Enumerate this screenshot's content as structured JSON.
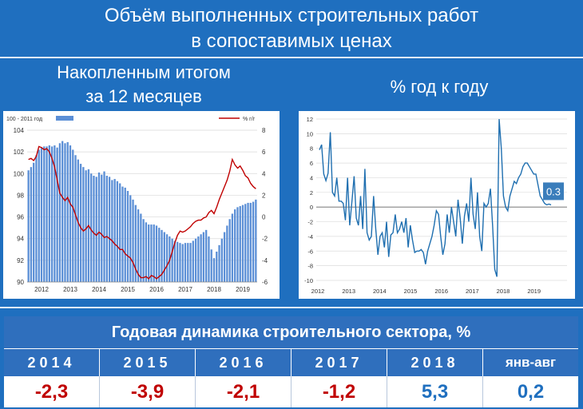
{
  "title_line1": "Объём выполненных строительных работ",
  "title_line2": "в сопоставимых ценах",
  "left_subtitle_line1": "Накопленным итогом",
  "left_subtitle_line2": "за 12 месяцев",
  "right_subtitle": "% год к году",
  "table": {
    "title": "Годовая динамика строительного сектора, %",
    "headers": [
      "2014",
      "2015",
      "2016",
      "2017",
      "2018",
      "янв-авг"
    ],
    "values": [
      "-2,3",
      "-3,9",
      "-2,1",
      "-1,2",
      "5,3",
      "0,2"
    ],
    "value_colors": [
      "#c00000",
      "#c00000",
      "#c00000",
      "#c00000",
      "#1f6fbf",
      "#1f6fbf"
    ]
  },
  "chart_data": [
    {
      "type": "bar",
      "legend_left": "100 - 2011 год",
      "legend_right": "% г/г",
      "y_left_ticks": [
        "90",
        "92",
        "94",
        "96",
        "98",
        "100",
        "102",
        "104"
      ],
      "y_left_lim": [
        90,
        104
      ],
      "y_right_ticks": [
        "-6",
        "-4",
        "-2",
        "0",
        "2",
        "4",
        "6",
        "8"
      ],
      "y_right_lim": [
        -6,
        8
      ],
      "x_ticks": [
        "2012",
        "2013",
        "2014",
        "2015",
        "2016",
        "2017",
        "2018",
        "2019"
      ],
      "series": [
        {
          "name": "100 - 2011 год",
          "type": "bar",
          "color": "#5b8fd6",
          "values": [
            100.3,
            100.6,
            101.0,
            101.7,
            102.2,
            102.4,
            102.5,
            102.5,
            102.6,
            102.5,
            102.6,
            102.4,
            102.8,
            103.0,
            102.8,
            102.9,
            102.6,
            102.2,
            101.7,
            101.3,
            100.9,
            100.6,
            100.3,
            100.4,
            100.0,
            99.8,
            99.7,
            100.1,
            99.9,
            100.2,
            99.8,
            99.7,
            99.4,
            99.5,
            99.3,
            99.1,
            98.8,
            98.7,
            98.4,
            98.0,
            97.6,
            97.1,
            96.7,
            96.3,
            95.8,
            95.5,
            95.3,
            95.3,
            95.3,
            95.2,
            95.0,
            94.8,
            94.6,
            94.4,
            94.2,
            94.0,
            93.8,
            93.7,
            93.6,
            93.5,
            93.6,
            93.6,
            93.6,
            93.8,
            94.0,
            94.2,
            94.4,
            94.6,
            94.8,
            94.2,
            93.0,
            92.2,
            92.8,
            93.4,
            94.0,
            94.6,
            95.2,
            95.8,
            96.3,
            96.7,
            96.9,
            97.0,
            97.1,
            97.2,
            97.3,
            97.3,
            97.4,
            97.6
          ]
        },
        {
          "name": "% г/г",
          "type": "line",
          "color": "#c00000",
          "values": [
            5.3,
            5.4,
            5.2,
            5.6,
            6.5,
            6.4,
            6.2,
            6.3,
            6.0,
            5.4,
            4.6,
            3.4,
            2.2,
            1.8,
            1.5,
            1.8,
            1.2,
            0.9,
            0.2,
            -0.5,
            -1.0,
            -1.3,
            -1.1,
            -0.8,
            -1.2,
            -1.5,
            -1.7,
            -1.4,
            -1.6,
            -1.9,
            -1.8,
            -2.0,
            -2.2,
            -2.5,
            -2.7,
            -3.0,
            -3.0,
            -3.4,
            -3.6,
            -3.8,
            -4.2,
            -4.8,
            -5.3,
            -5.6,
            -5.6,
            -5.5,
            -5.7,
            -5.4,
            -5.5,
            -5.7,
            -5.5,
            -5.3,
            -4.9,
            -4.5,
            -4.0,
            -3.2,
            -2.4,
            -1.7,
            -1.3,
            -1.4,
            -1.3,
            -1.1,
            -0.9,
            -0.6,
            -0.4,
            -0.3,
            -0.3,
            -0.1,
            0.0,
            0.4,
            0.6,
            0.3,
            0.9,
            1.6,
            2.2,
            2.8,
            3.4,
            4.2,
            5.3,
            4.8,
            4.5,
            4.7,
            4.3,
            3.8,
            3.6,
            3.1,
            2.8,
            2.6
          ]
        }
      ]
    },
    {
      "type": "line",
      "y_ticks": [
        "-10",
        "-8",
        "-6",
        "-4",
        "-2",
        "0",
        "2",
        "4",
        "6",
        "8",
        "10",
        "12"
      ],
      "ylim": [
        -10,
        12
      ],
      "x_ticks": [
        "2012",
        "2013",
        "2014",
        "2015",
        "2016",
        "2017",
        "2018",
        "2019"
      ],
      "last_value_label": "0.3",
      "series": [
        {
          "color": "#1f6fb0",
          "values": [
            7.8,
            8.5,
            4.5,
            3.6,
            4.6,
            10.2,
            2.0,
            1.5,
            4.0,
            0.8,
            0.8,
            0.5,
            -1.8,
            4.0,
            -2.5,
            0.8,
            4.2,
            -1.5,
            -2.5,
            1.5,
            -3.0,
            5.2,
            -3.5,
            -4.5,
            -4.0,
            1.5,
            -3.0,
            -6.5,
            -4.0,
            -3.5,
            -5.5,
            -2.0,
            -6.8,
            -3.8,
            -3.5,
            -1.0,
            -3.5,
            -3.0,
            -2.0,
            -3.5,
            -1.5,
            -5.5,
            -2.5,
            -4.5,
            -6.2,
            -6.0,
            -6.0,
            -5.8,
            -6.2,
            -7.8,
            -6.0,
            -5.0,
            -4.0,
            -2.5,
            -0.5,
            -1.0,
            -4.0,
            -6.5,
            -5.0,
            -1.0,
            -3.5,
            0.0,
            -2.0,
            -4.0,
            1.0,
            -1.5,
            -5.0,
            -1.2,
            0.5,
            -2.0,
            4.0,
            -1.0,
            -3.0,
            2.0,
            -4.0,
            -6.0,
            0.5,
            0.0,
            0.5,
            2.5,
            -2.5,
            -8.5,
            -9.5,
            12.0,
            8.0,
            1.5,
            0.0,
            -0.5,
            1.5,
            2.5,
            3.5,
            3.2,
            4.0,
            4.5,
            5.5,
            6.0,
            6.0,
            5.5,
            5.0,
            4.5,
            4.5,
            3.0,
            1.5,
            1.0,
            0.5,
            0.3,
            0.4,
            0.3
          ]
        }
      ]
    }
  ]
}
